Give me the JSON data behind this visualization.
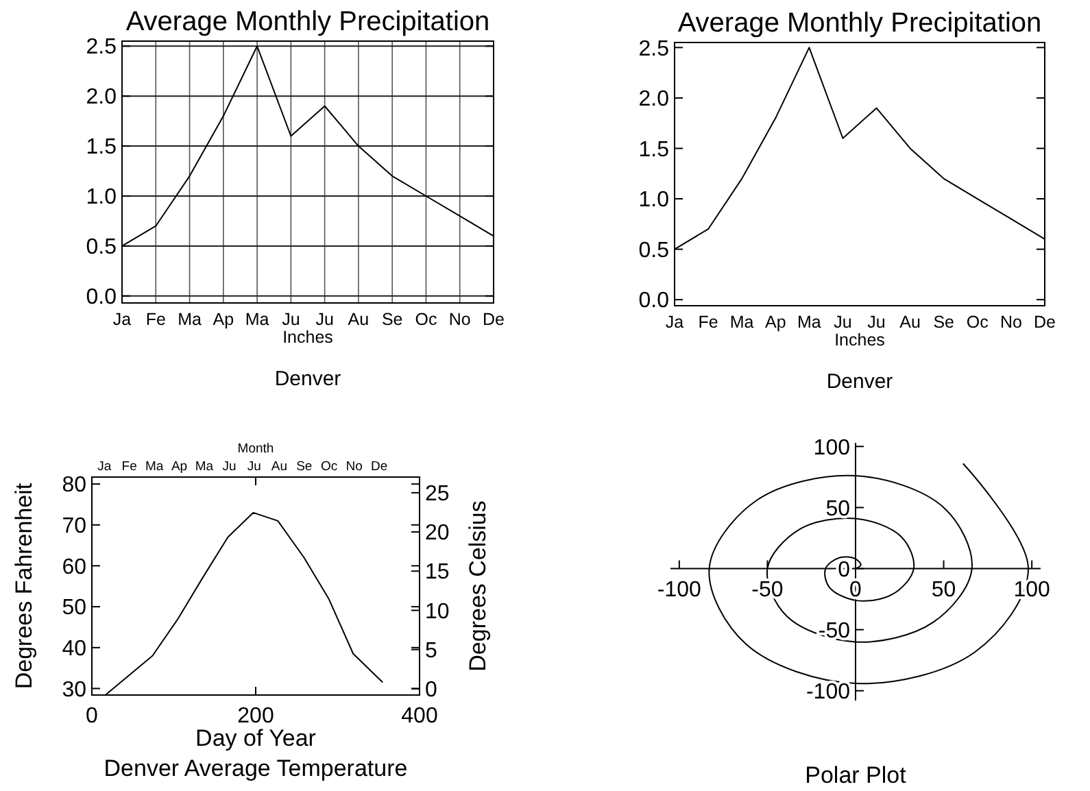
{
  "chart_data": [
    {
      "type": "line",
      "title": "Average Monthly Precipitation",
      "subtitle": "Denver",
      "xlabel": "Inches",
      "categories": [
        "Ja",
        "Fe",
        "Ma",
        "Ap",
        "Ma",
        "Ju",
        "Ju",
        "Au",
        "Se",
        "Oc",
        "No",
        "De"
      ],
      "series": [
        {
          "color": "#000000",
          "values": [
            0.5,
            0.7,
            1.2,
            1.8,
            2.5,
            1.6,
            1.9,
            1.5,
            1.2,
            1.0,
            0.8,
            0.6
          ]
        }
      ],
      "ylim": [
        -0.07,
        2.55
      ],
      "yticks": [
        {
          "value": 0,
          "label": "0.0"
        },
        {
          "value": 0.5,
          "label": "0.5"
        },
        {
          "value": 1,
          "label": "1.0"
        },
        {
          "value": 1.5,
          "label": "1.5"
        },
        {
          "value": 2,
          "label": "2.0"
        },
        {
          "value": 2.5,
          "label": "2.5"
        }
      ],
      "grid": true
    },
    {
      "type": "line",
      "title": "Average Monthly Precipitation",
      "subtitle": "Denver",
      "xlabel": "Inches",
      "categories": [
        "Ja",
        "Fe",
        "Ma",
        "Ap",
        "Ma",
        "Ju",
        "Ju",
        "Au",
        "Se",
        "Oc",
        "No",
        "De"
      ],
      "series": [
        {
          "color": "#000000",
          "values": [
            0.5,
            0.7,
            1.2,
            1.8,
            2.5,
            1.6,
            1.9,
            1.5,
            1.2,
            1.0,
            0.8,
            0.6
          ]
        }
      ],
      "ylim": [
        -0.06,
        2.55
      ],
      "yticks": [
        {
          "value": 0,
          "label": "0.0"
        },
        {
          "value": 0.5,
          "label": "0.5"
        },
        {
          "value": 1,
          "label": "1.0"
        },
        {
          "value": 1.5,
          "label": "1.5"
        },
        {
          "value": 2,
          "label": "2.0"
        },
        {
          "value": 2.5,
          "label": "2.5"
        }
      ]
    },
    {
      "type": "line",
      "subtitle": "Denver Average Temperature",
      "xlabel": "Day of Year",
      "ylabel": "Degrees Fahrenheit",
      "y2label": "Degrees Celsius",
      "x2label": "Month",
      "series": [
        {
          "color": "#000000",
          "x": [
            17,
            74,
            105,
            135,
            166,
            197,
            227,
            259,
            289,
            319,
            355
          ],
          "values": [
            28.5,
            38,
            47,
            57,
            67,
            73,
            71,
            62,
            52,
            38.5,
            31.5
          ]
        }
      ],
      "xlim": [
        0,
        400
      ],
      "xticks": [
        0,
        200,
        400
      ],
      "ylim": [
        28.4,
        81.7
      ],
      "yticks": [
        30,
        40,
        50,
        60,
        70,
        80
      ],
      "y2lim": [
        -0.8,
        27
      ],
      "y2ticks": [
        0,
        5,
        10,
        15,
        20,
        25
      ],
      "annotations": [
        "Ja",
        "Fe",
        "Ma",
        "Ap",
        "Ma",
        "Ju",
        "Ju",
        "Au",
        "Se",
        "Oc",
        "No",
        "De"
      ]
    },
    {
      "type": "line",
      "subtitle": "Polar Plot",
      "series": [
        {
          "color": "#000000",
          "x": [
            0,
            3,
            0,
            -9,
            -17,
            -15,
            0,
            21,
            33,
            26,
            0,
            -32,
            -50,
            -39,
            0,
            44,
            66,
            50,
            0,
            -56,
            -83,
            -62,
            0,
            68,
            98,
            61
          ],
          "values": [
            0,
            3,
            8,
            9,
            0,
            -15,
            -26,
            -21,
            0,
            26,
            41,
            32,
            0,
            -39,
            -60,
            -44,
            0,
            50,
            76,
            56,
            0,
            -62,
            -94,
            -68,
            0,
            86
          ]
        }
      ],
      "xlim": [
        -105,
        105
      ],
      "xticks": [
        -100,
        -50,
        0,
        50,
        100
      ],
      "ylim": [
        -108,
        103
      ],
      "yticks": [
        -100,
        -50,
        0,
        50,
        100
      ]
    }
  ]
}
